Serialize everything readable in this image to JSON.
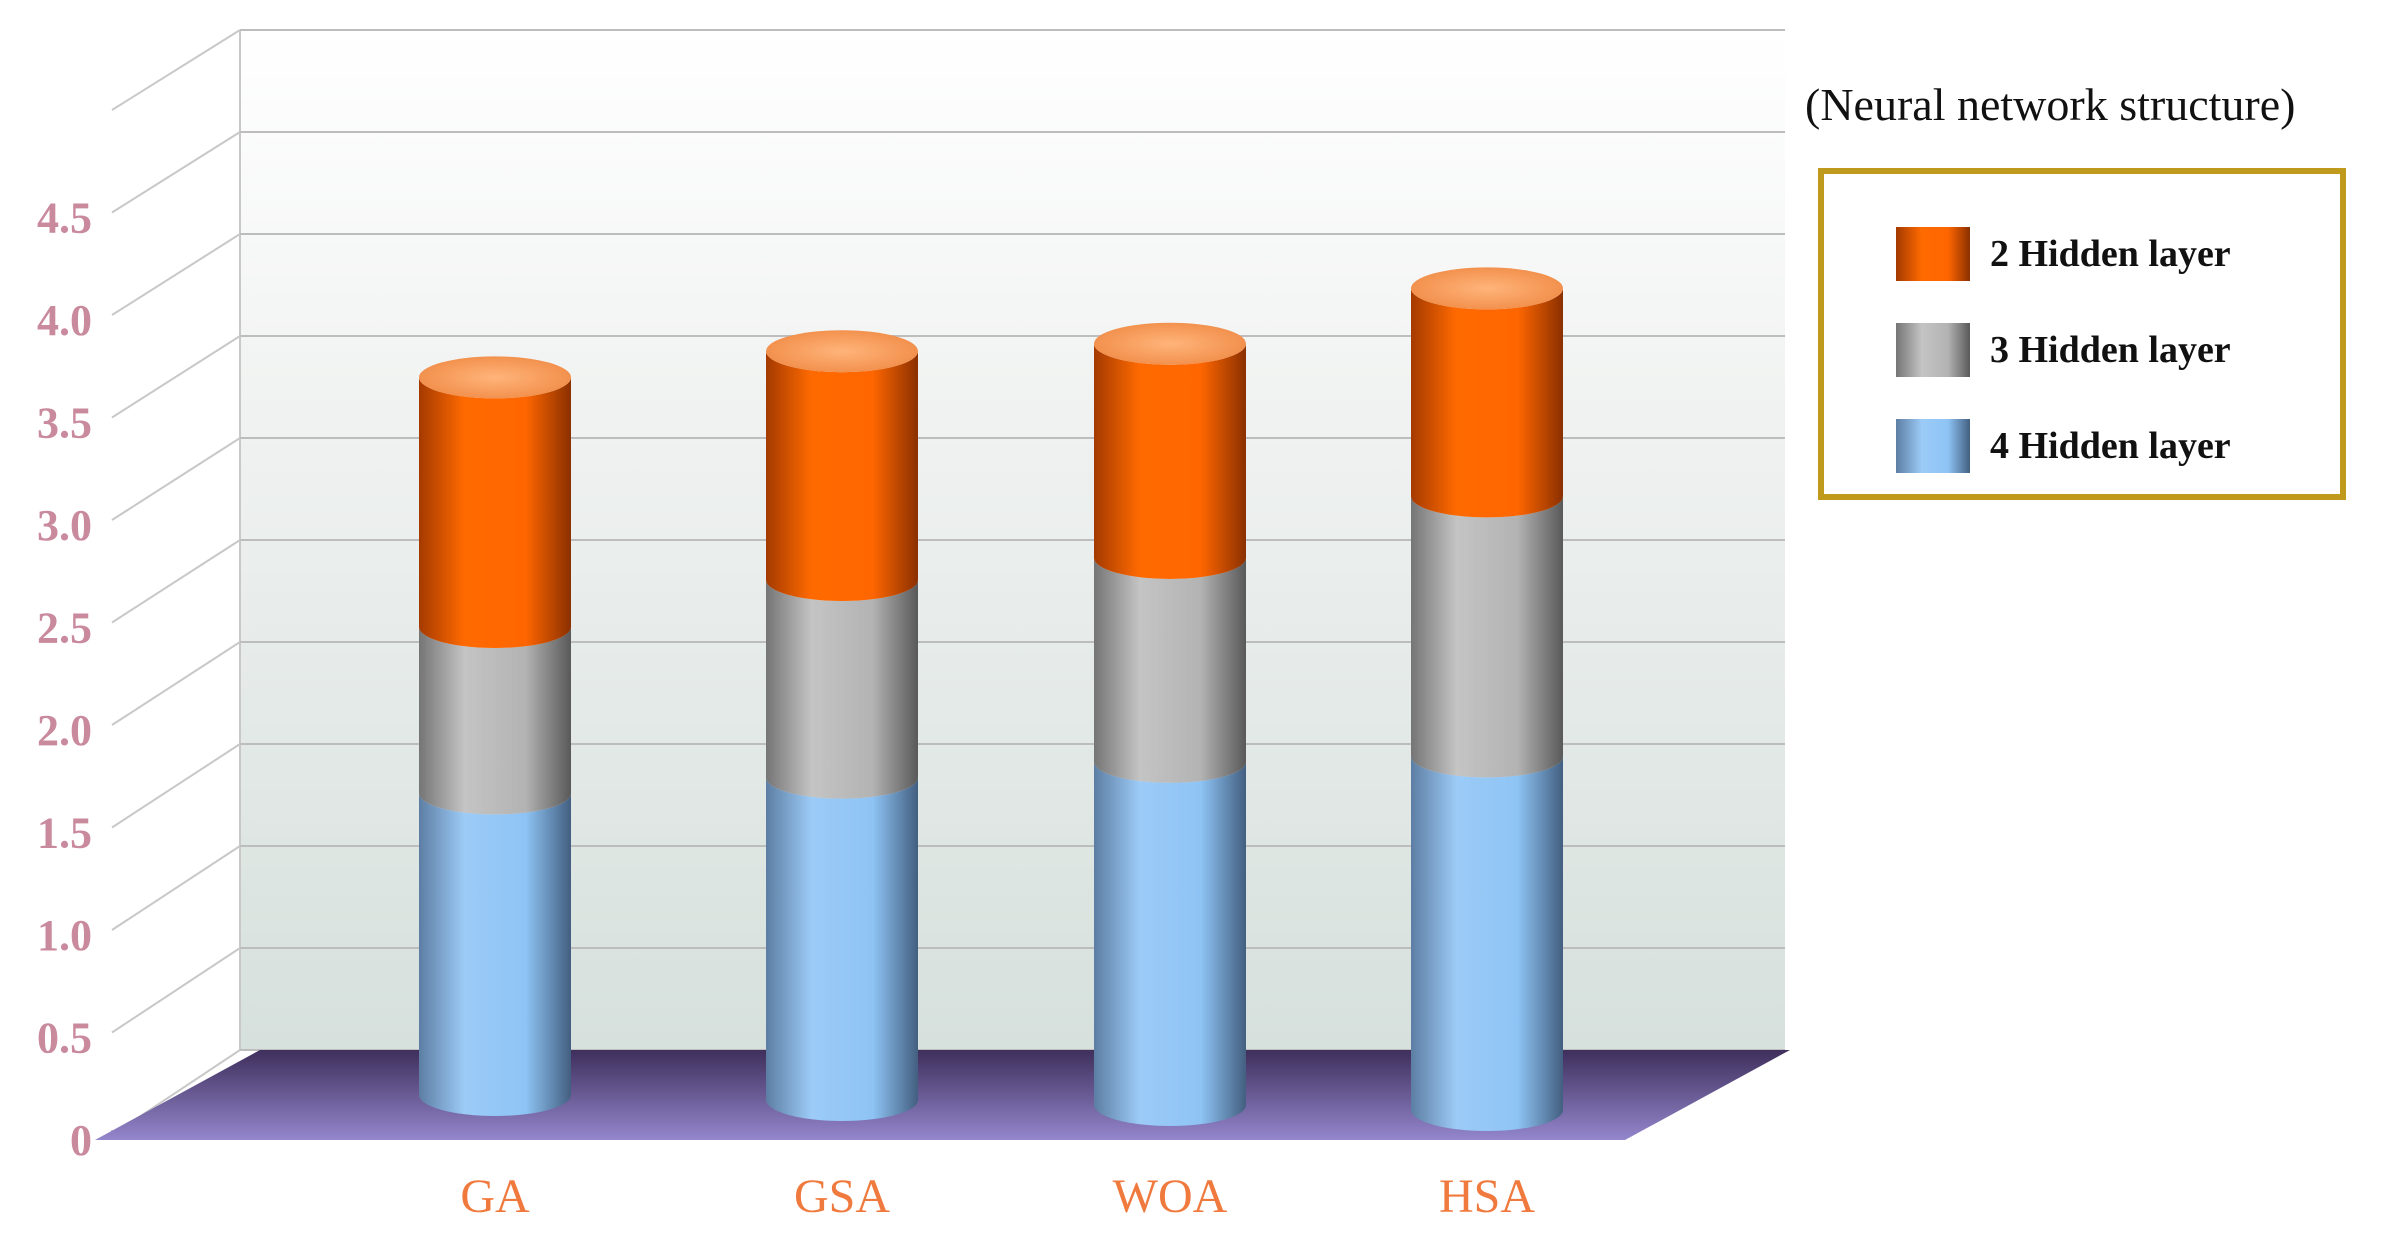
{
  "chart_data": {
    "type": "bar",
    "stacked": true,
    "style": "3d-cylinder",
    "categories": [
      "GA",
      "GSA",
      "WOA",
      "HSA"
    ],
    "series": [
      {
        "name": "4 Hidden layer",
        "values": [
          1.45,
          1.55,
          1.65,
          1.7
        ],
        "color": "#8ec4f5"
      },
      {
        "name": "3 Hidden layer",
        "values": [
          0.8,
          0.95,
          0.98,
          1.25
        ],
        "color": "#b0b0b0"
      },
      {
        "name": "2 Hidden layer",
        "values": [
          1.2,
          1.1,
          1.03,
          1.0
        ],
        "color": "#ff6600"
      }
    ],
    "yticks": [
      "0",
      "0.5",
      "1.0",
      "1.5",
      "2.0",
      "2.5",
      "3.0",
      "3.5",
      "4.0",
      "4.5"
    ],
    "ylim": [
      0,
      5
    ],
    "grid": true,
    "legend_title": "(Neural network structure)",
    "legend_order": [
      "2 Hidden layer",
      "3 Hidden layer",
      "4 Hidden layer"
    ],
    "legend_position": "top-right",
    "colors": {
      "tick": "#c98a9e",
      "category": "#f07a3e",
      "floor": "#7f72b4",
      "legend_border": "#c09a1c"
    }
  }
}
